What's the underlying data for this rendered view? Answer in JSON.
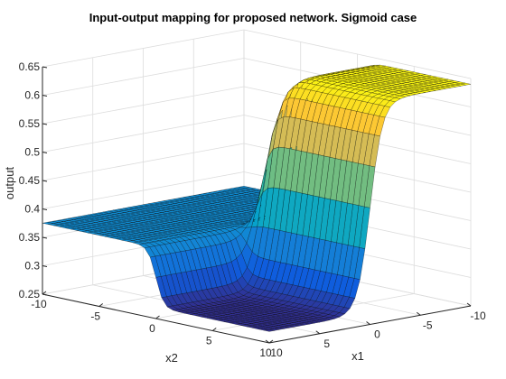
{
  "chart_data": {
    "type": "surface",
    "title": "Input-output mapping for proposed network. Sigmoid case",
    "xlabel": "x1",
    "ylabel": "x2",
    "zlabel": "output",
    "x_range": [
      -10,
      10
    ],
    "y_range": [
      -10,
      10
    ],
    "zlim": [
      0.25,
      0.65
    ],
    "x_ticks": [
      "-10",
      "-5",
      "0",
      "5",
      "10"
    ],
    "y_ticks": [
      "-10",
      "-5",
      "0",
      "5",
      "10"
    ],
    "z_ticks": [
      "0.25",
      "0.3",
      "0.35",
      "0.4",
      "0.45",
      "0.5",
      "0.55",
      "0.6",
      "0.65"
    ],
    "grid": true,
    "colormap": "parula",
    "surface_description": "Plateau near 0.375 for x2 < 0; for x2 > 0 the output is about 0.27 when x1 > 0 and rises to about 0.64 when x1 < 0",
    "series": [
      {
        "name": "",
        "level": "x1 < 0, x2 > 0",
        "value": 0.64
      },
      {
        "name": "",
        "level": "x2 < 0",
        "value": 0.375
      },
      {
        "name": "",
        "level": "x1 > 0, x2 > 0",
        "value": 0.27
      }
    ]
  },
  "colors": {
    "colormap": [
      "#352a87",
      "#0f5cdd",
      "#1481d6",
      "#06a4ca",
      "#2eb7a4",
      "#87bf77",
      "#d1bb59",
      "#fec832",
      "#f9fb0e"
    ],
    "edge": "#000000",
    "axis": "#262626",
    "grid": "#dcdcdc",
    "background": "#ffffff"
  }
}
